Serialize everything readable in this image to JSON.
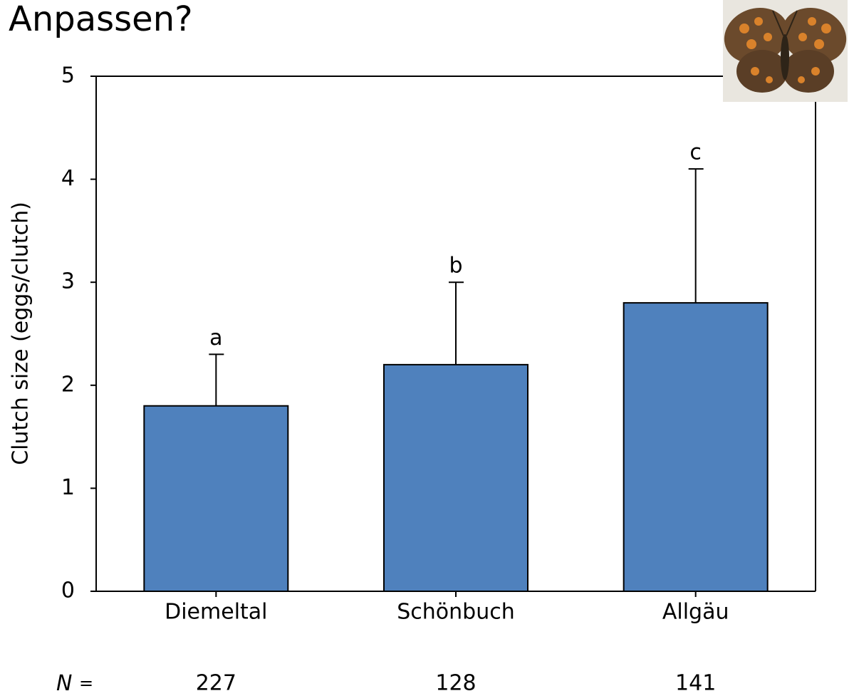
{
  "chart_data": {
    "type": "bar",
    "title": "Anpassen?",
    "y_label": "Clutch size (eggs/clutch)",
    "categories": [
      "Diemeltal",
      "Schönbuch",
      "Allgäu"
    ],
    "values": [
      1.8,
      2.2,
      2.8
    ],
    "errors": [
      0.5,
      0.8,
      1.3
    ],
    "annotations": [
      "a",
      "b",
      "c"
    ],
    "n_label": {
      "symbol": "N",
      "sign": "="
    },
    "sample_sizes": [
      227,
      128,
      141
    ],
    "color": "#4f81bd",
    "ylim": [
      0,
      5
    ],
    "yticks": [
      0,
      1,
      2,
      3,
      4,
      5
    ],
    "grid": false
  }
}
